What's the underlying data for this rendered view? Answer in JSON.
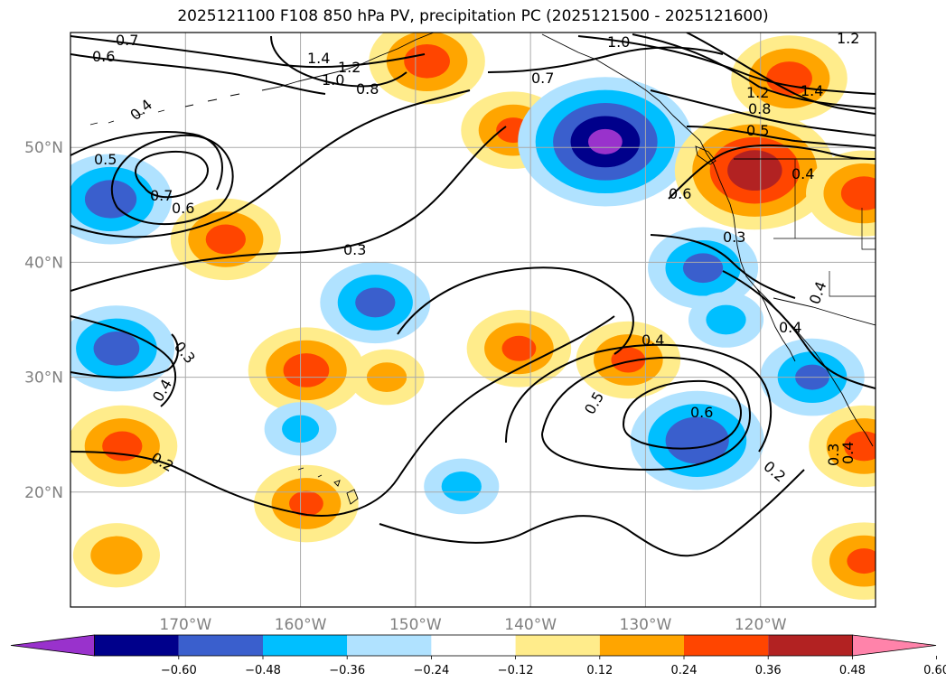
{
  "title": "2025121100 F108 850 hPa PV, precipitation PC (2025121500 - 2025121600)",
  "map": {
    "projection": "PlateCarree",
    "lon_range": [
      -180,
      -110
    ],
    "lat_range": [
      10,
      60
    ],
    "gridlines": true,
    "lon_ticks": [
      {
        "lon": -170,
        "label": "170°W"
      },
      {
        "lon": -160,
        "label": "160°W"
      },
      {
        "lon": -150,
        "label": "150°W"
      },
      {
        "lon": -140,
        "label": "140°W"
      },
      {
        "lon": -130,
        "label": "130°W"
      },
      {
        "lon": -120,
        "label": "120°W"
      }
    ],
    "lat_ticks": [
      {
        "lat": 50,
        "label": "50°N"
      },
      {
        "lat": 40,
        "label": "40°N"
      },
      {
        "lat": 30,
        "label": "30°N"
      },
      {
        "lat": 20,
        "label": "20°N"
      }
    ]
  },
  "colorbar": {
    "extend": "both",
    "levels": [
      -0.6,
      -0.48,
      -0.36,
      -0.24,
      -0.12,
      0.12,
      0.24,
      0.36,
      0.48,
      0.6
    ],
    "tick_labels": [
      "−0.60",
      "−0.48",
      "−0.36",
      "−0.24",
      "−0.12",
      "0.12",
      "0.24",
      "0.36",
      "0.48",
      "0.60"
    ],
    "colors": [
      "#9932cc",
      "#00008b",
      "#3a5fcd",
      "#00bfff",
      "#b0e2ff",
      "#ffffff",
      "#ffec8b",
      "#ffa500",
      "#ff4500",
      "#b22222",
      "#ff83aa"
    ]
  },
  "precip_anomalies": [
    {
      "lon": -176.5,
      "lat": 45.5,
      "value": -0.42
    },
    {
      "lon": -166.5,
      "lat": 42.0,
      "value": 0.38
    },
    {
      "lon": -176.0,
      "lat": 32.5,
      "value": -0.4
    },
    {
      "lon": -159.5,
      "lat": 30.6,
      "value": 0.4
    },
    {
      "lon": -152.5,
      "lat": 30.0,
      "value": 0.26
    },
    {
      "lon": -153.5,
      "lat": 36.5,
      "value": -0.38
    },
    {
      "lon": -175.5,
      "lat": 24.0,
      "value": 0.38
    },
    {
      "lon": -159.5,
      "lat": 19.0,
      "value": 0.36
    },
    {
      "lon": -176.0,
      "lat": 14.5,
      "value": 0.3
    },
    {
      "lon": -141.0,
      "lat": 32.5,
      "value": 0.36
    },
    {
      "lon": -149.0,
      "lat": 57.5,
      "value": 0.4
    },
    {
      "lon": -141.5,
      "lat": 51.5,
      "value": 0.36
    },
    {
      "lon": -133.5,
      "lat": 50.5,
      "value": -0.6
    },
    {
      "lon": -120.5,
      "lat": 48.0,
      "value": 0.55
    },
    {
      "lon": -117.5,
      "lat": 56.0,
      "value": 0.4
    },
    {
      "lon": -125.0,
      "lat": 39.5,
      "value": -0.38
    },
    {
      "lon": -125.5,
      "lat": 24.5,
      "value": -0.46
    },
    {
      "lon": -131.5,
      "lat": 31.5,
      "value": 0.36
    },
    {
      "lon": -115.5,
      "lat": 30.0,
      "value": -0.36
    },
    {
      "lon": -111.0,
      "lat": 46.0,
      "value": 0.4
    },
    {
      "lon": -111.0,
      "lat": 24.0,
      "value": 0.38
    },
    {
      "lon": -111.0,
      "lat": 14.0,
      "value": 0.36
    },
    {
      "lon": -146.0,
      "lat": 20.5,
      "value": -0.26
    },
    {
      "lon": -160.0,
      "lat": 25.5,
      "value": -0.25
    },
    {
      "lon": -123.0,
      "lat": 35.0,
      "value": -0.26
    }
  ],
  "pv_contour_labels": [
    "0.7",
    "0.6",
    "1.4",
    "1.2",
    "1.0",
    "0.8",
    "0.4",
    "0.5",
    "0.7",
    "0.6",
    "0.3",
    "0.7",
    "1.0",
    "1.2",
    "1.4",
    "0.8",
    "0.5",
    "0.6",
    "0.4",
    "0.3",
    "0.4",
    "0.4",
    "0.3",
    "0.4",
    "0.4",
    "0.5",
    "0.6",
    "0.2",
    "0.2",
    "0.3",
    "0.4",
    "1.2"
  ]
}
